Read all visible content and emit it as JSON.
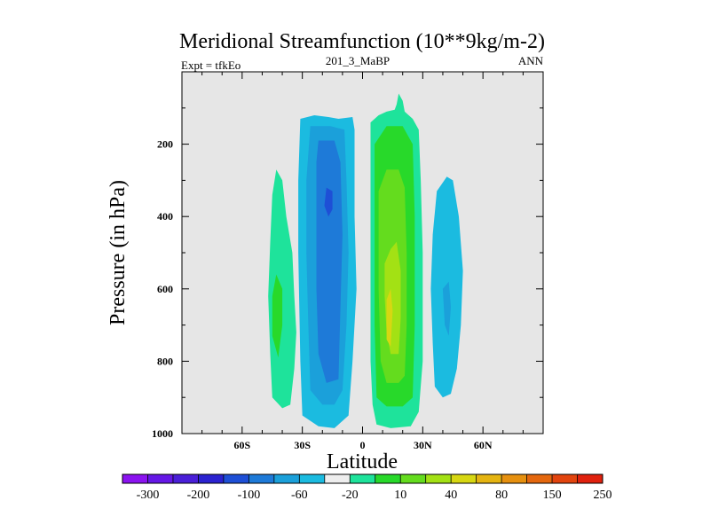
{
  "chart_data": {
    "type": "contour",
    "title": "Meridional Streamfunction (10**9kg/m-2)",
    "left_label": "Expt = tfkEo",
    "center_label": "201_3_MaBP",
    "right_label": "ANN",
    "xlabel": "Latitude",
    "ylabel": "Pressure (in hPa)",
    "xlim": [
      -90,
      90
    ],
    "ylim": [
      1000,
      0
    ],
    "x_ticks": [
      {
        "value": -60,
        "label": "60S"
      },
      {
        "value": -30,
        "label": "30S"
      },
      {
        "value": 0,
        "label": "0"
      },
      {
        "value": 30,
        "label": "30N"
      },
      {
        "value": 60,
        "label": "60N"
      }
    ],
    "y_ticks": [
      {
        "value": 200,
        "label": "200"
      },
      {
        "value": 400,
        "label": "400"
      },
      {
        "value": 600,
        "label": "600"
      },
      {
        "value": 800,
        "label": "800"
      },
      {
        "value": 1000,
        "label": "1000"
      }
    ],
    "background_color": "#e6e6e6",
    "colorbar": {
      "colors": [
        "#8b13f0",
        "#6517e6",
        "#4a1fd8",
        "#2b22d0",
        "#1e4fd6",
        "#1e7ad8",
        "#1ba0da",
        "#1bbbe0",
        "#eeeeee",
        "#1ee39b",
        "#28d92a",
        "#64dc1e",
        "#a3e114",
        "#d7d712",
        "#e5b411",
        "#e6900f",
        "#e4670e",
        "#e2440e",
        "#e0210e"
      ],
      "labels": [
        "-300",
        "-200",
        "-100",
        "-60",
        "-20",
        "10",
        "40",
        "80",
        "150",
        "250"
      ]
    },
    "contours": [
      {
        "name": "sh-ferrel-outer",
        "color": "#1ee39b",
        "points": [
          [
            -43,
            270
          ],
          [
            -40,
            300
          ],
          [
            -38,
            400
          ],
          [
            -35,
            500
          ],
          [
            -34,
            620
          ],
          [
            -33,
            720
          ],
          [
            -34,
            820
          ],
          [
            -36,
            920
          ],
          [
            -40,
            930
          ],
          [
            -45,
            900
          ],
          [
            -46,
            780
          ],
          [
            -47,
            620
          ],
          [
            -46,
            470
          ],
          [
            -45,
            340
          ]
        ]
      },
      {
        "name": "sh-ferrel-inner",
        "color": "#28d92a",
        "points": [
          [
            -43,
            560
          ],
          [
            -40,
            600
          ],
          [
            -40,
            700
          ],
          [
            -42,
            790
          ],
          [
            -45,
            730
          ],
          [
            -45,
            620
          ]
        ]
      },
      {
        "name": "sh-hadley-1",
        "color": "#1bbbe0",
        "points": [
          [
            -31,
            130
          ],
          [
            -24,
            120
          ],
          [
            -17,
            125
          ],
          [
            -12,
            130
          ],
          [
            -5,
            125
          ],
          [
            -4,
            160
          ],
          [
            -4,
            400
          ],
          [
            -3,
            600
          ],
          [
            -5,
            800
          ],
          [
            -7,
            950
          ],
          [
            -14,
            985
          ],
          [
            -22,
            980
          ],
          [
            -30,
            950
          ],
          [
            -31,
            800
          ],
          [
            -32,
            500
          ],
          [
            -32,
            300
          ]
        ]
      },
      {
        "name": "sh-hadley-2",
        "color": "#1ba0da",
        "points": [
          [
            -26,
            150
          ],
          [
            -16,
            150
          ],
          [
            -9,
            160
          ],
          [
            -8,
            300
          ],
          [
            -7,
            500
          ],
          [
            -8,
            700
          ],
          [
            -10,
            880
          ],
          [
            -14,
            920
          ],
          [
            -20,
            920
          ],
          [
            -26,
            880
          ],
          [
            -27,
            700
          ],
          [
            -28,
            500
          ],
          [
            -28,
            300
          ]
        ]
      },
      {
        "name": "sh-hadley-3",
        "color": "#1e7ad8",
        "points": [
          [
            -22,
            190
          ],
          [
            -14,
            190
          ],
          [
            -11,
            250
          ],
          [
            -10,
            450
          ],
          [
            -11,
            650
          ],
          [
            -12,
            850
          ],
          [
            -18,
            860
          ],
          [
            -22,
            780
          ],
          [
            -23,
            600
          ],
          [
            -23,
            400
          ],
          [
            -23,
            250
          ]
        ]
      },
      {
        "name": "sh-hadley-4",
        "color": "#1e4fd6",
        "points": [
          [
            -18,
            320
          ],
          [
            -15,
            330
          ],
          [
            -15,
            380
          ],
          [
            -17,
            400
          ],
          [
            -19,
            370
          ]
        ]
      },
      {
        "name": "nh-hadley-1",
        "color": "#1ee39b",
        "points": [
          [
            4,
            140
          ],
          [
            8,
            120
          ],
          [
            12,
            110
          ],
          [
            16,
            105
          ],
          [
            17,
            90
          ],
          [
            18,
            60
          ],
          [
            20,
            80
          ],
          [
            21,
            110
          ],
          [
            25,
            130
          ],
          [
            28,
            160
          ],
          [
            29,
            300
          ],
          [
            30,
            500
          ],
          [
            30,
            800
          ],
          [
            28,
            940
          ],
          [
            24,
            980
          ],
          [
            14,
            985
          ],
          [
            7,
            975
          ],
          [
            5,
            920
          ],
          [
            4,
            800
          ],
          [
            4,
            600
          ],
          [
            4,
            300
          ]
        ]
      },
      {
        "name": "nh-hadley-2",
        "color": "#28d92a",
        "points": [
          [
            6,
            200
          ],
          [
            12,
            150
          ],
          [
            20,
            150
          ],
          [
            25,
            200
          ],
          [
            26,
            400
          ],
          [
            26,
            700
          ],
          [
            25,
            900
          ],
          [
            20,
            925
          ],
          [
            12,
            925
          ],
          [
            7,
            900
          ],
          [
            6,
            700
          ],
          [
            6,
            400
          ]
        ]
      },
      {
        "name": "nh-hadley-3",
        "color": "#64dc1e",
        "points": [
          [
            8,
            330
          ],
          [
            12,
            270
          ],
          [
            18,
            270
          ],
          [
            21,
            320
          ],
          [
            22,
            500
          ],
          [
            22,
            700
          ],
          [
            21,
            840
          ],
          [
            18,
            860
          ],
          [
            12,
            860
          ],
          [
            9,
            800
          ],
          [
            8,
            600
          ],
          [
            8,
            450
          ]
        ]
      },
      {
        "name": "nh-hadley-4",
        "color": "#a3e114",
        "points": [
          [
            11,
            530
          ],
          [
            14,
            490
          ],
          [
            17,
            470
          ],
          [
            19,
            550
          ],
          [
            19,
            680
          ],
          [
            18,
            780
          ],
          [
            14,
            780
          ],
          [
            12,
            720
          ],
          [
            11,
            620
          ]
        ]
      },
      {
        "name": "nh-hadley-5",
        "color": "#d7d712",
        "points": [
          [
            12,
            630
          ],
          [
            14,
            600
          ],
          [
            15,
            660
          ],
          [
            14,
            760
          ],
          [
            12,
            740
          ]
        ]
      },
      {
        "name": "nh-ferrel-outer",
        "color": "#1bbbe0",
        "points": [
          [
            37,
            330
          ],
          [
            42,
            290
          ],
          [
            45,
            300
          ],
          [
            48,
            400
          ],
          [
            50,
            550
          ],
          [
            49,
            700
          ],
          [
            47,
            820
          ],
          [
            44,
            890
          ],
          [
            40,
            900
          ],
          [
            36,
            870
          ],
          [
            35,
            750
          ],
          [
            34,
            600
          ],
          [
            35,
            450
          ]
        ]
      },
      {
        "name": "nh-ferrel-inner",
        "color": "#1ba0da",
        "points": [
          [
            40,
            600
          ],
          [
            43,
            580
          ],
          [
            44,
            650
          ],
          [
            43,
            730
          ],
          [
            41,
            700
          ]
        ]
      }
    ]
  }
}
